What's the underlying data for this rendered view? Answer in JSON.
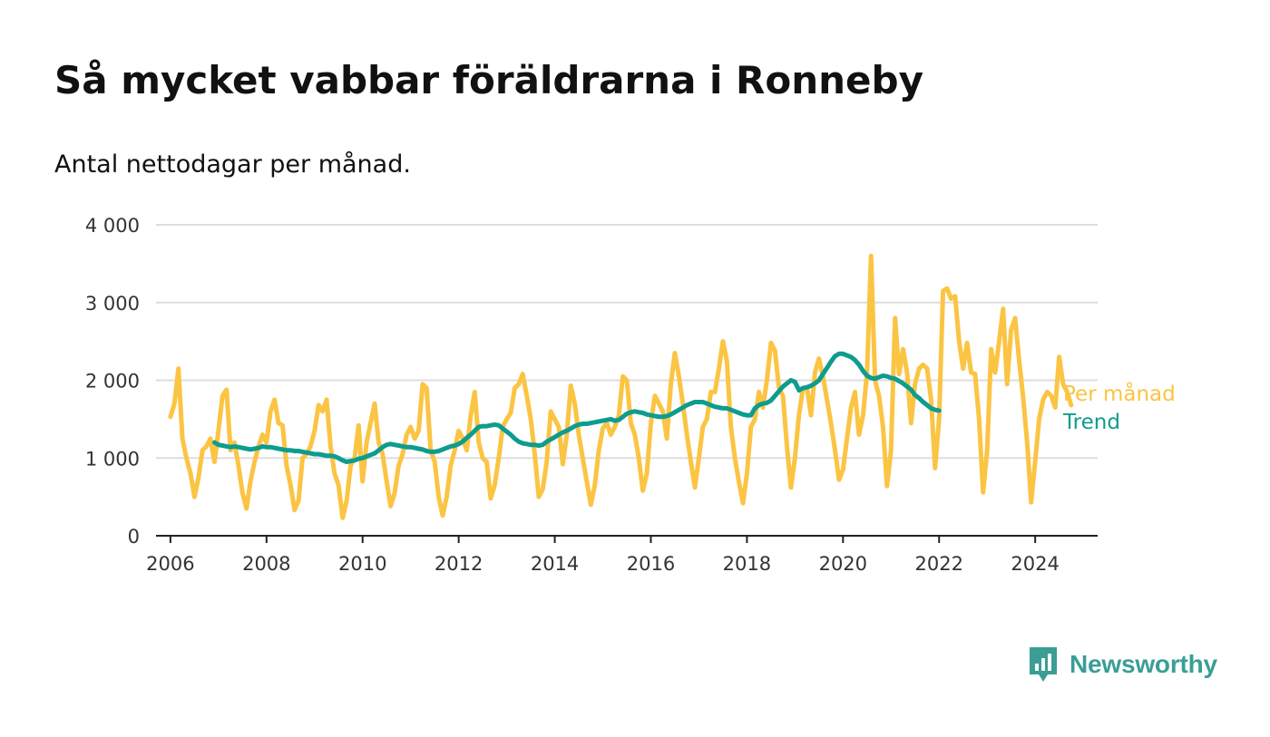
{
  "header": {
    "title": "Så mycket vabbar föräldrarna i Ronneby",
    "subtitle": "Antal nettodagar per månad."
  },
  "logo": {
    "text": "Newsworthy",
    "icon": "bar-chart-icon",
    "color": "#3a9e95"
  },
  "colors": {
    "monthly": "#fbc443",
    "trend": "#0e9c8e",
    "grid": "#dddddd",
    "axis": "#222222"
  },
  "chart_data": {
    "type": "line",
    "title": "Så mycket vabbar föräldrarna i Ronneby",
    "subtitle": "Antal nettodagar per månad.",
    "xlabel": "",
    "ylabel": "",
    "xlim": [
      2005.7,
      2025.3
    ],
    "ylim": [
      0,
      4000
    ],
    "grid": true,
    "x_tick_labels": [
      "2006",
      "2008",
      "2010",
      "2012",
      "2014",
      "2016",
      "2018",
      "2020",
      "2022",
      "2024"
    ],
    "y_tick_labels": [
      "0",
      "1 000",
      "2 000",
      "3 000",
      "4 000"
    ],
    "x_ticks": [
      2006,
      2008,
      2010,
      2012,
      2014,
      2016,
      2018,
      2020,
      2022,
      2024
    ],
    "y_ticks": [
      0,
      1000,
      2000,
      3000,
      4000
    ],
    "legend": "inline-right",
    "series": [
      {
        "name": "Per månad",
        "start": 2006.0,
        "step": 0.08333,
        "values": [
          1530,
          1700,
          2150,
          1250,
          1000,
          800,
          500,
          750,
          1100,
          1150,
          1250,
          950,
          1350,
          1800,
          1880,
          1100,
          1200,
          900,
          550,
          350,
          700,
          950,
          1150,
          1300,
          1200,
          1600,
          1750,
          1450,
          1420,
          900,
          650,
          330,
          450,
          1000,
          1050,
          1150,
          1350,
          1680,
          1600,
          1750,
          1150,
          800,
          650,
          230,
          450,
          900,
          1000,
          1420,
          700,
          1200,
          1450,
          1700,
          1200,
          1050,
          700,
          380,
          550,
          900,
          1050,
          1300,
          1400,
          1250,
          1350,
          1950,
          1900,
          1100,
          950,
          500,
          260,
          500,
          900,
          1100,
          1350,
          1250,
          1100,
          1550,
          1850,
          1200,
          1000,
          950,
          480,
          650,
          1000,
          1400,
          1500,
          1580,
          1900,
          1950,
          2080,
          1800,
          1500,
          1050,
          500,
          600,
          950,
          1600,
          1500,
          1400,
          920,
          1300,
          1930,
          1700,
          1300,
          1000,
          700,
          400,
          650,
          1100,
          1380,
          1450,
          1300,
          1400,
          1550,
          2050,
          2000,
          1450,
          1300,
          1000,
          580,
          800,
          1450,
          1800,
          1700,
          1600,
          1250,
          1950,
          2350,
          2050,
          1700,
          1300,
          950,
          620,
          1000,
          1400,
          1500,
          1850,
          1850,
          2150,
          2500,
          2250,
          1400,
          1000,
          700,
          420,
          800,
          1400,
          1500,
          1850,
          1650,
          2000,
          2480,
          2380,
          1900,
          1800,
          1150,
          620,
          1000,
          1550,
          1900,
          1900,
          1550,
          2100,
          2280,
          2050,
          1750,
          1450,
          1100,
          720,
          850,
          1250,
          1650,
          1850,
          1300,
          1550,
          2100,
          3600,
          2000,
          1800,
          1400,
          640,
          1100,
          2800,
          2080,
          2400,
          2100,
          1450,
          1950,
          2150,
          2200,
          2150,
          1750,
          870,
          1500,
          3150,
          3180,
          3050,
          3080,
          2500,
          2150,
          2480,
          2100,
          2080,
          1500,
          560,
          1100,
          2400,
          2100,
          2500,
          2920,
          1950,
          2650,
          2800,
          2250,
          1780,
          1200,
          430,
          950,
          1500,
          1750,
          1850,
          1800,
          1650,
          2300,
          1950,
          1850,
          1680
        ]
      },
      {
        "name": "Trend",
        "start": 2006.917,
        "step": 0.08333,
        "values": [
          1200,
          1170,
          1160,
          1150,
          1140,
          1150,
          1140,
          1130,
          1120,
          1110,
          1120,
          1130,
          1150,
          1140,
          1140,
          1130,
          1120,
          1110,
          1100,
          1100,
          1090,
          1090,
          1080,
          1070,
          1060,
          1050,
          1050,
          1040,
          1030,
          1030,
          1020,
          1000,
          970,
          950,
          960,
          970,
          990,
          1000,
          1020,
          1040,
          1060,
          1100,
          1140,
          1170,
          1180,
          1170,
          1160,
          1150,
          1140,
          1140,
          1130,
          1120,
          1110,
          1090,
          1080,
          1080,
          1090,
          1110,
          1130,
          1150,
          1160,
          1180,
          1210,
          1260,
          1300,
          1350,
          1400,
          1410,
          1410,
          1420,
          1430,
          1420,
          1380,
          1340,
          1300,
          1250,
          1210,
          1190,
          1180,
          1170,
          1170,
          1160,
          1170,
          1210,
          1240,
          1270,
          1300,
          1330,
          1350,
          1380,
          1410,
          1430,
          1440,
          1440,
          1450,
          1460,
          1470,
          1480,
          1490,
          1500,
          1480,
          1490,
          1530,
          1570,
          1590,
          1600,
          1590,
          1580,
          1560,
          1550,
          1540,
          1530,
          1530,
          1540,
          1560,
          1590,
          1620,
          1650,
          1680,
          1700,
          1720,
          1720,
          1720,
          1700,
          1680,
          1660,
          1650,
          1640,
          1640,
          1620,
          1600,
          1580,
          1560,
          1550,
          1550,
          1640,
          1680,
          1700,
          1710,
          1740,
          1800,
          1860,
          1920,
          1960,
          2000,
          1980,
          1870,
          1900,
          1910,
          1930,
          1960,
          2000,
          2080,
          2160,
          2240,
          2310,
          2340,
          2340,
          2320,
          2300,
          2260,
          2200,
          2120,
          2060,
          2030,
          2020,
          2040,
          2060,
          2050,
          2030,
          2020,
          1990,
          1960,
          1920,
          1880,
          1810,
          1770,
          1720,
          1680,
          1640,
          1620,
          1610
        ]
      }
    ]
  }
}
